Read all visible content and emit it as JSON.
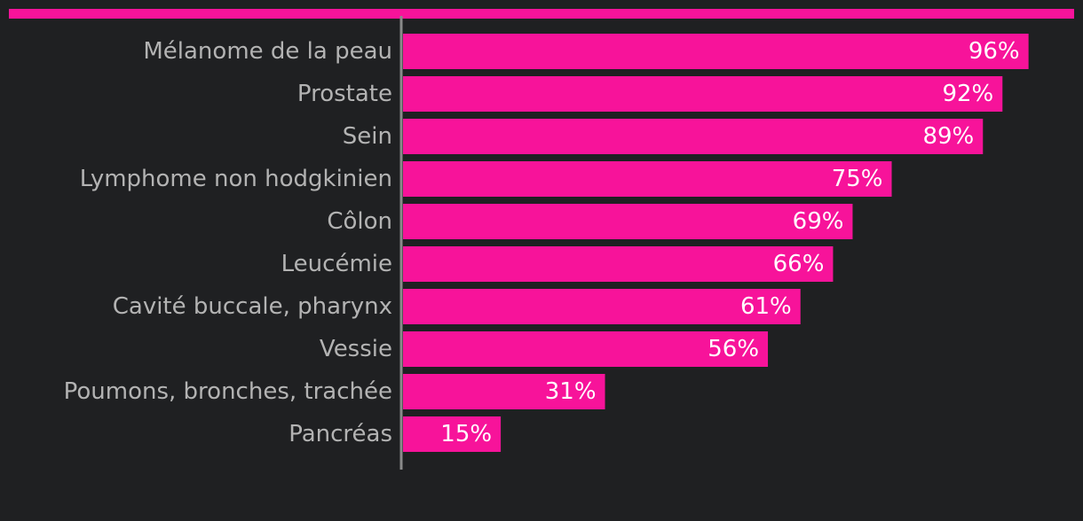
{
  "colors": {
    "background": "#1f2022",
    "bar": "#f7139a",
    "axis": "#8a8a8a",
    "category_text": "#b3b3b3",
    "value_text": "#ffffff"
  },
  "chart_data": {
    "type": "bar",
    "orientation": "horizontal",
    "categories": [
      "Mélanome de la peau",
      "Prostate",
      "Sein",
      "Lymphome non hodgkinien",
      "Côlon",
      "Leucémie",
      "Cavité buccale, pharynx",
      "Vessie",
      "Poumons, bronches, trachée",
      "Pancréas"
    ],
    "values": [
      96,
      92,
      89,
      75,
      69,
      66,
      61,
      56,
      31,
      15
    ],
    "value_labels": [
      "96%",
      "92%",
      "89%",
      "75%",
      "69%",
      "66%",
      "61%",
      "56%",
      "31%",
      "15%"
    ],
    "xlim": [
      0,
      100
    ],
    "grid": false,
    "legend": "none"
  }
}
